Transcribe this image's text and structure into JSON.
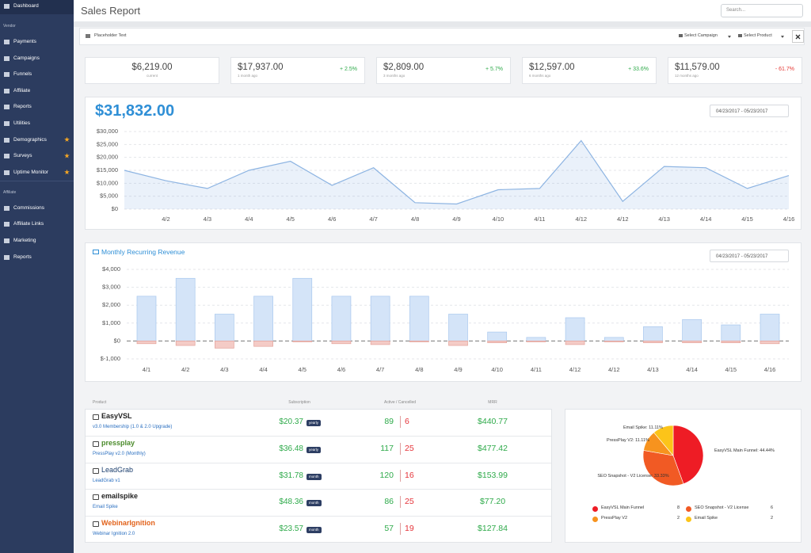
{
  "sidebar": {
    "top": "Dashboard",
    "sections": [
      {
        "title": "Vendor",
        "items": [
          {
            "label": "Payments"
          },
          {
            "label": "Campaigns"
          },
          {
            "label": "Funnels"
          },
          {
            "label": "Affiliate"
          },
          {
            "label": "Reports"
          },
          {
            "label": "Utilities"
          },
          {
            "label": "Demographics",
            "starred": true
          },
          {
            "label": "Surveys",
            "starred": true
          },
          {
            "label": "Uptime Monitor",
            "starred": true
          }
        ]
      },
      {
        "title": "Affiliate",
        "items": [
          {
            "label": "Commissions"
          },
          {
            "label": "Affiliate Links"
          },
          {
            "label": "Marketing"
          },
          {
            "label": "Reports"
          }
        ]
      }
    ]
  },
  "header": {
    "title": "Sales Report",
    "search_placeholder": "Search..."
  },
  "filters": {
    "placeholder": "Placeholder Text",
    "campaign": "Select Campaign",
    "product": "Select Product"
  },
  "stats": [
    {
      "value": "$6,219.00",
      "period": "current"
    },
    {
      "value": "$17,937.00",
      "period": "1 month ago",
      "change": "+ 2.5%"
    },
    {
      "value": "$2,809.00",
      "period": "3 months ago",
      "change": "+ 5.7%"
    },
    {
      "value": "$12,597.00",
      "period": "6 months ago",
      "change": "+ 33.6%"
    },
    {
      "value": "$11,579.00",
      "period": "12 months ago",
      "change": "- 61.7%"
    }
  ],
  "chart_data": [
    {
      "type": "line",
      "title": "$31,832.00",
      "date_range": "04/23/2017 - 05/23/2017",
      "color": "#8db4e2",
      "grid": true,
      "categories": [
        null,
        "4/2",
        "4/3",
        "4/4",
        "4/5",
        "4/6",
        "4/7",
        "4/8",
        "4/9",
        "4/10",
        "4/11",
        "4/12",
        "4/12",
        "4/13",
        "4/14",
        "4/15",
        "4/16"
      ],
      "values": [
        15000,
        11000,
        8000,
        15000,
        18500,
        9200,
        16000,
        2500,
        2000,
        7500,
        8000,
        26500,
        3000,
        16500,
        16000,
        8000,
        13000
      ],
      "ylim": [
        0,
        30000
      ],
      "yticks": [
        {
          "value": 0,
          "label": "$0"
        },
        {
          "value": 5000,
          "label": "$5,000"
        },
        {
          "value": 10000,
          "label": "$10,000"
        },
        {
          "value": 15000,
          "label": "$15,000"
        },
        {
          "value": 20000,
          "label": "$20,000"
        },
        {
          "value": 25000,
          "label": "$25,000"
        },
        {
          "value": 30000,
          "label": "$30,000"
        }
      ]
    },
    {
      "type": "bar",
      "title": "Monthly Recurring Revenue",
      "date_range": "04/23/2017 - 05/23/2017",
      "grid": true,
      "categories": [
        "4/1",
        "4/2",
        "4/3",
        "4/4",
        "4/5",
        "4/6",
        "4/7",
        "4/8",
        "4/9",
        "4/10",
        "4/11",
        "4/12",
        "4/12",
        "4/13",
        "4/14",
        "4/15",
        "4/16"
      ],
      "series": [
        {
          "color": "#d4e4f8",
          "values": [
            2500,
            3500,
            1500,
            2500,
            3500,
            2500,
            2500,
            2500,
            1500,
            500,
            200,
            1300,
            200,
            800,
            1200,
            900,
            1500
          ]
        },
        {
          "color": "#f4cbc6",
          "values": [
            -150,
            -250,
            -400,
            -300,
            -50,
            -150,
            -200,
            -50,
            -250,
            -100,
            -50,
            -200,
            -50,
            -100,
            -100,
            -100,
            -150
          ]
        }
      ],
      "ylim": [
        -1000,
        4000
      ],
      "yticks": [
        {
          "value": -1000,
          "label": "$-1,000"
        },
        {
          "value": 0,
          "label": "$0"
        },
        {
          "value": 1000,
          "label": "$1,000"
        },
        {
          "value": 2000,
          "label": "$2,000"
        },
        {
          "value": 3000,
          "label": "$3,000"
        },
        {
          "value": 4000,
          "label": "$4,000"
        }
      ]
    },
    {
      "type": "pie",
      "categories": [
        "EasyVSL Main Funnel",
        "SEO Snapshot - V2 License",
        "PressPlay V2",
        "Email Spike"
      ],
      "values": [
        44.44,
        33.33,
        11.11,
        11.11
      ],
      "value_labels": [
        "EasyVSL Main Funnel: 44.44%",
        "SEO Snapshot - V2 License: 33.33%",
        "PressPlay V2: 11.11%",
        "Email Spike: 11.11%"
      ],
      "colors": [
        "#ee1c25",
        "#f15a24",
        "#f7931e",
        "#fcc419"
      ],
      "counts": [
        8,
        6,
        2,
        2
      ]
    }
  ],
  "table": {
    "headers": [
      "Product",
      "Subscription",
      "Active / Cancelled",
      "MRR"
    ],
    "rows": [
      {
        "logo": "EasyVSL",
        "product": "v3.0 Membership (1.0 & 2.0 Upgrade)",
        "price": "$20.37",
        "billing": "yearly",
        "active": 89,
        "cancelled": 6,
        "mrr": "$440.77"
      },
      {
        "logo": "pressplay",
        "product": "PressPlay v2.0 (Monthly)",
        "price": "$36.48",
        "billing": "yearly",
        "active": 117,
        "cancelled": 25,
        "mrr": "$477.42"
      },
      {
        "logo": "LeadGrab",
        "product": "LeadGrab v1",
        "price": "$31.78",
        "billing": "month",
        "active": 120,
        "cancelled": 16,
        "mrr": "$153.99"
      },
      {
        "logo": "emailspike",
        "product": "Email Spike",
        "price": "$48.36",
        "billing": "month",
        "active": 86,
        "cancelled": 25,
        "mrr": "$77.20"
      },
      {
        "logo": "WebinarIgnition",
        "product": "Webinar Ignition 2.0",
        "price": "$23.57",
        "billing": "month",
        "active": 57,
        "cancelled": 19,
        "mrr": "$127.84"
      }
    ]
  }
}
